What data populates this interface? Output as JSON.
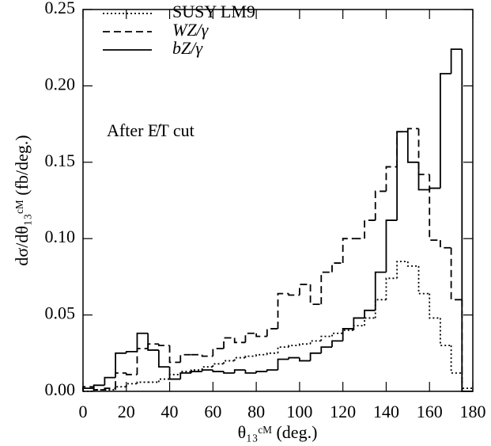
{
  "chart_data": {
    "type": "histogram",
    "xlabel": "θ₁₃ᶜᴹ (deg.)",
    "ylabel": "dσ/dθ₁₃ᶜᴹ (fb/deg.)",
    "annotation": "After E̸T cut",
    "bins": [
      0,
      5,
      10,
      15,
      20,
      25,
      30,
      35,
      40,
      45,
      50,
      55,
      60,
      65,
      70,
      75,
      80,
      85,
      90,
      95,
      100,
      105,
      110,
      115,
      120,
      125,
      130,
      135,
      140,
      145,
      150,
      155,
      160,
      165,
      170,
      175,
      180
    ],
    "series": [
      {
        "name": "SUSY LM9",
        "color": "#000000",
        "dash": "dotted",
        "values": [
          0.0,
          0.001,
          0.001,
          0.003,
          0.005,
          0.006,
          0.006,
          0.008,
          0.011,
          0.013,
          0.014,
          0.016,
          0.018,
          0.02,
          0.022,
          0.023,
          0.024,
          0.025,
          0.029,
          0.03,
          0.031,
          0.033,
          0.036,
          0.038,
          0.04,
          0.043,
          0.048,
          0.06,
          0.074,
          0.085,
          0.082,
          0.064,
          0.048,
          0.03,
          0.012,
          0.002
        ]
      },
      {
        "name": "WZ/γ",
        "color": "#000000",
        "dash": "dashed",
        "values": [
          0.003,
          0.001,
          0.002,
          0.012,
          0.011,
          0.028,
          0.031,
          0.03,
          0.019,
          0.024,
          0.024,
          0.023,
          0.028,
          0.035,
          0.032,
          0.038,
          0.036,
          0.041,
          0.064,
          0.063,
          0.07,
          0.057,
          0.078,
          0.084,
          0.1,
          0.1,
          0.112,
          0.131,
          0.147,
          0.17,
          0.172,
          0.142,
          0.099,
          0.094,
          0.06,
          0.0
        ]
      },
      {
        "name": "bZ/γ",
        "color": "#000000",
        "dash": "solid",
        "values": [
          0.002,
          0.004,
          0.009,
          0.025,
          0.026,
          0.038,
          0.027,
          0.016,
          0.008,
          0.012,
          0.013,
          0.014,
          0.013,
          0.012,
          0.014,
          0.012,
          0.013,
          0.014,
          0.021,
          0.022,
          0.02,
          0.025,
          0.029,
          0.033,
          0.041,
          0.048,
          0.053,
          0.078,
          0.112,
          0.17,
          0.15,
          0.132,
          0.133,
          0.208,
          0.224,
          0.0
        ]
      }
    ],
    "xlim": [
      0,
      180
    ],
    "xticks": [
      0,
      20,
      40,
      60,
      80,
      100,
      120,
      140,
      160,
      180
    ],
    "ylim": [
      0,
      0.25
    ],
    "yticks": [
      {
        "value": 0,
        "label": "0.00"
      },
      0.05,
      {
        "value": 0.1,
        "label": "0.10"
      },
      0.15,
      {
        "value": 0.2,
        "label": "0.20"
      },
      0.25
    ],
    "grid": false,
    "legend": "upper left"
  }
}
